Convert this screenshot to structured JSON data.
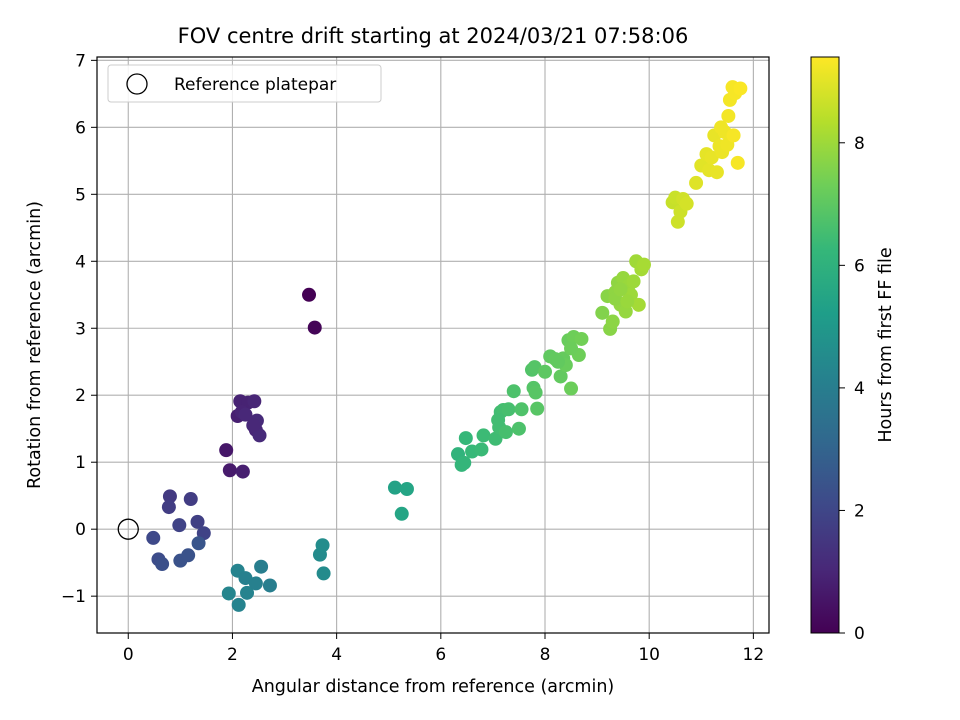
{
  "chart_data": {
    "type": "scatter",
    "title": "FOV centre drift starting at 2024/03/21 07:58:06",
    "xlabel": "Angular distance from reference (arcmin)",
    "ylabel": "Rotation from reference (arcmin)",
    "xlim": [
      -0.6,
      12.3
    ],
    "ylim": [
      -1.55,
      7.05
    ],
    "xticks": [
      0,
      2,
      4,
      6,
      8,
      10,
      12
    ],
    "yticks": [
      -1,
      0,
      1,
      2,
      3,
      4,
      5,
      6,
      7
    ],
    "grid": true,
    "legend": {
      "position": "top-left",
      "entries": [
        "Reference platepar"
      ]
    },
    "reference_point": {
      "x": 0,
      "y": 0
    },
    "colorbar": {
      "label": "Hours from first FF file",
      "colormap": "viridis",
      "range": [
        0,
        9.4
      ],
      "ticks": [
        0,
        2,
        4,
        6,
        8
      ]
    },
    "series": [
      {
        "x": [
          3.47,
          3.58,
          1.88,
          1.95,
          2.1,
          2.15,
          2.2,
          2.3,
          2.42,
          2.45,
          2.47,
          2.52,
          2.18,
          2.25,
          2.4,
          0.8,
          0.78,
          1.2,
          1.33,
          0.98,
          1.45,
          0.48,
          0.58,
          0.65,
          1.0,
          1.15,
          1.35,
          1.93,
          2.1,
          2.12,
          2.25,
          2.28,
          2.45,
          2.55,
          2.72,
          3.68,
          3.73,
          3.75,
          5.12,
          5.25,
          5.35,
          6.33,
          6.4,
          6.45,
          6.48,
          6.6,
          6.78,
          6.82,
          7.05,
          7.12,
          7.15,
          7.2,
          7.25,
          7.3,
          7.4,
          7.5,
          7.55,
          7.75,
          7.78,
          7.8,
          7.82,
          7.85,
          7.1,
          8.0,
          8.1,
          8.2,
          8.3,
          8.35,
          8.4,
          8.45,
          8.5,
          8.55,
          8.65,
          8.7,
          8.5,
          8.25,
          9.1,
          9.2,
          9.25,
          9.3,
          9.35,
          9.4,
          9.45,
          9.5,
          9.55,
          9.6,
          9.65,
          9.7,
          9.75,
          9.8,
          9.85,
          9.9,
          9.35,
          9.45,
          9.58,
          10.45,
          10.5,
          10.55,
          10.6,
          10.65,
          10.72,
          10.9,
          11.0,
          11.1,
          11.15,
          11.2,
          11.25,
          11.3,
          11.35,
          11.4,
          11.45,
          11.5,
          11.55,
          11.6,
          11.65,
          11.7,
          11.75,
          11.52,
          11.38,
          11.62
        ],
        "y": [
          3.5,
          3.01,
          1.18,
          0.88,
          1.69,
          1.91,
          0.86,
          1.89,
          1.91,
          1.48,
          1.62,
          1.4,
          1.75,
          1.71,
          1.55,
          0.49,
          0.33,
          0.45,
          0.11,
          0.06,
          -0.06,
          -0.13,
          -0.45,
          -0.52,
          -0.47,
          -0.39,
          -0.21,
          -0.96,
          -0.62,
          -1.13,
          -0.73,
          -0.95,
          -0.81,
          -0.56,
          -0.84,
          -0.38,
          -0.24,
          -0.66,
          0.62,
          0.23,
          0.6,
          1.12,
          0.96,
          0.99,
          1.36,
          1.16,
          1.19,
          1.4,
          1.35,
          1.52,
          1.75,
          1.78,
          1.45,
          1.79,
          2.06,
          1.5,
          1.79,
          2.38,
          2.11,
          2.42,
          2.04,
          1.8,
          1.63,
          2.35,
          2.58,
          2.54,
          2.28,
          2.55,
          2.45,
          2.82,
          2.1,
          2.87,
          2.6,
          2.84,
          2.7,
          2.5,
          3.23,
          3.48,
          2.99,
          3.1,
          3.54,
          3.68,
          3.35,
          3.75,
          3.25,
          3.63,
          3.5,
          3.7,
          4.0,
          3.35,
          3.88,
          3.95,
          3.44,
          3.58,
          3.4,
          4.88,
          4.95,
          4.59,
          4.74,
          4.93,
          4.86,
          5.17,
          5.43,
          5.6,
          5.36,
          5.55,
          5.88,
          5.33,
          5.72,
          5.63,
          5.93,
          5.74,
          6.41,
          6.6,
          6.51,
          5.47,
          6.58,
          6.17,
          6.0,
          5.88
        ],
        "hours": [
          0.0,
          0.1,
          0.6,
          0.7,
          0.8,
          0.9,
          0.8,
          0.9,
          1.0,
          1.0,
          1.1,
          1.1,
          0.95,
          1.05,
          1.05,
          1.6,
          1.7,
          1.7,
          1.8,
          1.9,
          1.9,
          2.1,
          2.2,
          2.3,
          2.4,
          2.4,
          2.5,
          4.3,
          4.2,
          4.2,
          4.1,
          4.2,
          4.1,
          4.0,
          4.0,
          4.5,
          4.6,
          4.5,
          5.4,
          5.5,
          5.5,
          6.1,
          6.2,
          6.2,
          6.25,
          6.3,
          6.35,
          6.4,
          6.45,
          6.5,
          6.5,
          6.55,
          6.6,
          6.6,
          6.7,
          6.7,
          6.75,
          6.8,
          6.85,
          6.85,
          6.9,
          6.9,
          6.5,
          7.0,
          7.05,
          7.1,
          7.1,
          7.15,
          7.2,
          7.2,
          7.25,
          7.3,
          7.3,
          7.35,
          7.25,
          7.1,
          7.6,
          7.7,
          7.7,
          7.75,
          7.8,
          7.8,
          7.85,
          7.9,
          7.9,
          7.95,
          8.0,
          8.0,
          8.05,
          8.1,
          8.1,
          8.15,
          7.8,
          7.85,
          7.95,
          8.6,
          8.65,
          8.7,
          8.7,
          8.75,
          8.8,
          8.95,
          9.0,
          9.05,
          9.05,
          9.1,
          9.1,
          9.1,
          9.15,
          9.15,
          9.2,
          9.2,
          9.25,
          9.3,
          9.3,
          9.3,
          9.35,
          9.25,
          9.2,
          9.3
        ]
      }
    ]
  },
  "colors": {
    "grid": "#b0b0b0",
    "axes": "#000000",
    "colormap_stops": [
      "#440154",
      "#482878",
      "#3e4989",
      "#31688e",
      "#26828e",
      "#1f9e89",
      "#35b779",
      "#6ece58",
      "#b5de2b",
      "#fde725"
    ]
  }
}
